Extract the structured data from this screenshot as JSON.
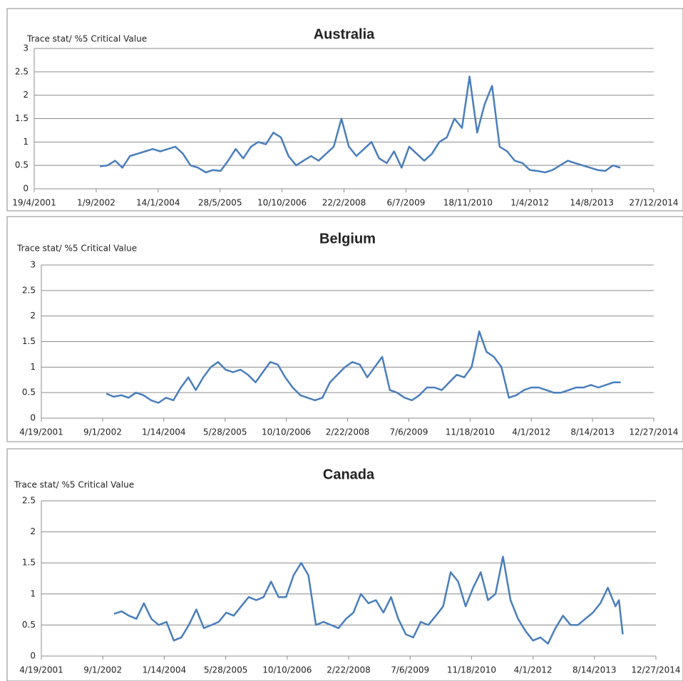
{
  "chart_data": [
    {
      "type": "line",
      "title": "Australia",
      "y_label": "Trace stat/ %5 Critical Value",
      "color": "#4a7ebb",
      "grid": true,
      "xlim": [
        "2001-04-19",
        "2014-12-27"
      ],
      "xticks": [
        {
          "value": "2001-04-19",
          "label": "19/4/2001"
        },
        {
          "value": "2002-09-01",
          "label": "1/9/2002"
        },
        {
          "value": "2004-01-14",
          "label": "14/1/2004"
        },
        {
          "value": "2005-05-28",
          "label": "28/5/2005"
        },
        {
          "value": "2006-10-10",
          "label": "10/10/2006"
        },
        {
          "value": "2008-02-22",
          "label": "22/2/2008"
        },
        {
          "value": "2009-07-06",
          "label": "6/7/2009"
        },
        {
          "value": "2010-11-18",
          "label": "18/11/2010"
        },
        {
          "value": "2012-04-01",
          "label": "1/4/2012"
        },
        {
          "value": "2013-08-14",
          "label": "14/8/2013"
        },
        {
          "value": "2014-12-27",
          "label": "27/12/2014"
        }
      ],
      "ylim": [
        0,
        3
      ],
      "yticks": [
        0,
        0.5,
        1,
        1.5,
        2,
        2.5,
        3
      ],
      "x": [
        "2002-10-01",
        "2002-12-01",
        "2003-02-01",
        "2003-04-01",
        "2003-06-01",
        "2003-08-01",
        "2003-10-01",
        "2003-12-01",
        "2004-02-01",
        "2004-04-01",
        "2004-06-01",
        "2004-08-01",
        "2004-10-01",
        "2004-12-01",
        "2005-02-01",
        "2005-04-01",
        "2005-06-01",
        "2005-08-01",
        "2005-10-01",
        "2005-12-01",
        "2006-02-01",
        "2006-04-01",
        "2006-06-01",
        "2006-08-01",
        "2006-10-01",
        "2006-12-01",
        "2007-02-01",
        "2007-04-01",
        "2007-06-01",
        "2007-08-01",
        "2007-10-01",
        "2007-12-01",
        "2008-02-01",
        "2008-04-01",
        "2008-06-01",
        "2008-08-01",
        "2008-10-01",
        "2008-12-01",
        "2009-02-01",
        "2009-04-01",
        "2009-06-01",
        "2009-08-01",
        "2009-10-01",
        "2009-12-01",
        "2010-02-01",
        "2010-04-01",
        "2010-06-01",
        "2010-08-01",
        "2010-10-01",
        "2010-12-01",
        "2011-02-01",
        "2011-04-01",
        "2011-06-01",
        "2011-08-01",
        "2011-10-01",
        "2011-12-01",
        "2012-02-01",
        "2012-04-01",
        "2012-06-01",
        "2012-08-01",
        "2012-10-01",
        "2012-12-01",
        "2013-02-01",
        "2013-04-01",
        "2013-06-01",
        "2013-08-01",
        "2013-10-01",
        "2013-12-01",
        "2014-02-01",
        "2014-04-01"
      ],
      "values": [
        0.48,
        0.5,
        0.6,
        0.45,
        0.7,
        0.75,
        0.8,
        0.85,
        0.8,
        0.85,
        0.9,
        0.75,
        0.5,
        0.45,
        0.35,
        0.4,
        0.38,
        0.6,
        0.85,
        0.65,
        0.9,
        1.0,
        0.95,
        1.2,
        1.1,
        0.7,
        0.5,
        0.6,
        0.7,
        0.6,
        0.75,
        0.9,
        1.5,
        0.9,
        0.7,
        0.85,
        1.0,
        0.65,
        0.55,
        0.8,
        0.45,
        0.9,
        0.75,
        0.6,
        0.75,
        1.0,
        1.1,
        1.5,
        1.3,
        2.4,
        1.2,
        1.8,
        2.2,
        0.9,
        0.8,
        0.6,
        0.55,
        0.4,
        0.38,
        0.35,
        0.4,
        0.5,
        0.6,
        0.55,
        0.5,
        0.45,
        0.4,
        0.38,
        0.5,
        0.45
      ]
    },
    {
      "type": "line",
      "title": "Belgium",
      "y_label": "Trace stat/ %5 Critical Value",
      "color": "#4a7ebb",
      "grid": true,
      "xlim": [
        "2001-04-19",
        "2014-12-27"
      ],
      "xticks": [
        {
          "value": "2001-04-19",
          "label": "4/19/2001"
        },
        {
          "value": "2002-09-01",
          "label": "9/1/2002"
        },
        {
          "value": "2004-01-14",
          "label": "1/14/2004"
        },
        {
          "value": "2005-05-28",
          "label": "5/28/2005"
        },
        {
          "value": "2006-10-10",
          "label": "10/10/2006"
        },
        {
          "value": "2008-02-22",
          "label": "2/22/2008"
        },
        {
          "value": "2009-07-06",
          "label": "7/6/2009"
        },
        {
          "value": "2010-11-18",
          "label": "11/18/2010"
        },
        {
          "value": "2012-04-01",
          "label": "4/1/2012"
        },
        {
          "value": "2013-08-14",
          "label": "8/14/2013"
        },
        {
          "value": "2014-12-27",
          "label": "12/27/2014"
        }
      ],
      "ylim": [
        0,
        3
      ],
      "yticks": [
        0,
        0.5,
        1,
        1.5,
        2,
        2.5,
        3
      ],
      "x": [
        "2002-10-01",
        "2002-12-01",
        "2003-02-01",
        "2003-04-01",
        "2003-06-01",
        "2003-08-01",
        "2003-10-01",
        "2003-12-01",
        "2004-02-01",
        "2004-04-01",
        "2004-06-01",
        "2004-08-01",
        "2004-10-01",
        "2004-12-01",
        "2005-02-01",
        "2005-04-01",
        "2005-06-01",
        "2005-08-01",
        "2005-10-01",
        "2005-12-01",
        "2006-02-01",
        "2006-04-01",
        "2006-06-01",
        "2006-08-01",
        "2006-10-01",
        "2006-12-01",
        "2007-02-01",
        "2007-04-01",
        "2007-06-01",
        "2007-08-01",
        "2007-10-01",
        "2007-12-01",
        "2008-02-01",
        "2008-04-01",
        "2008-06-01",
        "2008-08-01",
        "2008-10-01",
        "2008-12-01",
        "2009-02-01",
        "2009-04-01",
        "2009-06-01",
        "2009-08-01",
        "2009-10-01",
        "2009-12-01",
        "2010-02-01",
        "2010-04-01",
        "2010-06-01",
        "2010-08-01",
        "2010-10-01",
        "2010-12-01",
        "2011-02-01",
        "2011-04-01",
        "2011-06-01",
        "2011-08-01",
        "2011-10-01",
        "2011-12-01",
        "2012-02-01",
        "2012-04-01",
        "2012-06-01",
        "2012-08-01",
        "2012-10-01",
        "2012-12-01",
        "2013-02-01",
        "2013-04-01",
        "2013-06-01",
        "2013-08-01",
        "2013-10-01",
        "2013-12-01",
        "2014-02-01",
        "2014-04-01"
      ],
      "values": [
        0.48,
        0.42,
        0.45,
        0.4,
        0.5,
        0.45,
        0.35,
        0.3,
        0.4,
        0.35,
        0.6,
        0.8,
        0.55,
        0.8,
        1.0,
        1.1,
        0.95,
        0.9,
        0.95,
        0.85,
        0.7,
        0.9,
        1.1,
        1.05,
        0.8,
        0.6,
        0.45,
        0.4,
        0.35,
        0.4,
        0.7,
        0.85,
        1.0,
        1.1,
        1.05,
        0.8,
        1.0,
        1.2,
        0.55,
        0.5,
        0.4,
        0.35,
        0.45,
        0.6,
        0.6,
        0.55,
        0.7,
        0.85,
        0.8,
        1.0,
        1.7,
        1.3,
        1.2,
        1.0,
        0.4,
        0.45,
        0.55,
        0.6,
        0.6,
        0.55,
        0.5,
        0.5,
        0.55,
        0.6,
        0.6,
        0.65,
        0.6,
        0.65,
        0.7,
        0.7
      ]
    },
    {
      "type": "line",
      "title": "Canada",
      "y_label": "Trace stat/ %5 Critical Value",
      "color": "#4a7ebb",
      "grid": true,
      "xlim": [
        "2001-04-19",
        "2014-12-27"
      ],
      "xticks": [
        {
          "value": "2001-04-19",
          "label": "4/19/2001"
        },
        {
          "value": "2002-09-01",
          "label": "9/1/2002"
        },
        {
          "value": "2004-01-14",
          "label": "1/14/2004"
        },
        {
          "value": "2005-05-28",
          "label": "5/28/2005"
        },
        {
          "value": "2006-10-10",
          "label": "10/10/2006"
        },
        {
          "value": "2008-02-22",
          "label": "2/22/2008"
        },
        {
          "value": "2009-07-06",
          "label": "7/6/2009"
        },
        {
          "value": "2010-11-18",
          "label": "11/18/2010"
        },
        {
          "value": "2012-04-01",
          "label": "4/1/2012"
        },
        {
          "value": "2013-08-14",
          "label": "8/14/2013"
        },
        {
          "value": "2014-12-27",
          "label": "12/27/2014"
        }
      ],
      "ylim": [
        0,
        2.5
      ],
      "yticks": [
        0,
        0.5,
        1,
        1.5,
        2,
        2.5
      ],
      "x": [
        "2002-12-01",
        "2003-02-01",
        "2003-04-01",
        "2003-06-01",
        "2003-08-01",
        "2003-10-01",
        "2003-12-01",
        "2004-02-01",
        "2004-04-01",
        "2004-06-01",
        "2004-08-01",
        "2004-10-01",
        "2004-12-01",
        "2005-02-01",
        "2005-04-01",
        "2005-06-01",
        "2005-08-01",
        "2005-10-01",
        "2005-12-01",
        "2006-02-01",
        "2006-04-01",
        "2006-06-01",
        "2006-08-01",
        "2006-10-01",
        "2006-12-01",
        "2007-02-01",
        "2007-04-01",
        "2007-06-01",
        "2007-08-01",
        "2007-10-01",
        "2007-12-01",
        "2008-02-01",
        "2008-04-01",
        "2008-06-01",
        "2008-08-01",
        "2008-10-01",
        "2008-12-01",
        "2009-02-01",
        "2009-04-01",
        "2009-06-01",
        "2009-08-01",
        "2009-10-01",
        "2009-12-01",
        "2010-02-01",
        "2010-04-01",
        "2010-06-01",
        "2010-08-01",
        "2010-10-01",
        "2010-12-01",
        "2011-02-01",
        "2011-04-01",
        "2011-06-01",
        "2011-08-01",
        "2011-10-01",
        "2011-12-01",
        "2012-02-01",
        "2012-04-01",
        "2012-06-01",
        "2012-08-01",
        "2012-10-01",
        "2012-12-01",
        "2013-02-01",
        "2013-04-01",
        "2013-06-01",
        "2013-08-01",
        "2013-10-01",
        "2013-12-01",
        "2014-02-01",
        "2014-03-01",
        "2014-04-01"
      ],
      "values": [
        0.68,
        0.72,
        0.65,
        0.6,
        0.85,
        0.6,
        0.5,
        0.55,
        0.25,
        0.3,
        0.5,
        0.75,
        0.45,
        0.5,
        0.55,
        0.7,
        0.65,
        0.8,
        0.95,
        0.9,
        0.95,
        1.2,
        0.95,
        0.95,
        1.3,
        1.5,
        1.3,
        0.5,
        0.55,
        0.5,
        0.45,
        0.6,
        0.7,
        1.0,
        0.85,
        0.9,
        0.7,
        0.95,
        0.6,
        0.35,
        0.3,
        0.55,
        0.5,
        0.65,
        0.8,
        1.35,
        1.2,
        0.8,
        1.1,
        1.35,
        0.9,
        1.0,
        1.6,
        0.9,
        0.6,
        0.4,
        0.25,
        0.3,
        0.2,
        0.45,
        0.65,
        0.5,
        0.5,
        0.6,
        0.7,
        0.85,
        1.1,
        0.8,
        0.9,
        0.35
      ]
    }
  ]
}
